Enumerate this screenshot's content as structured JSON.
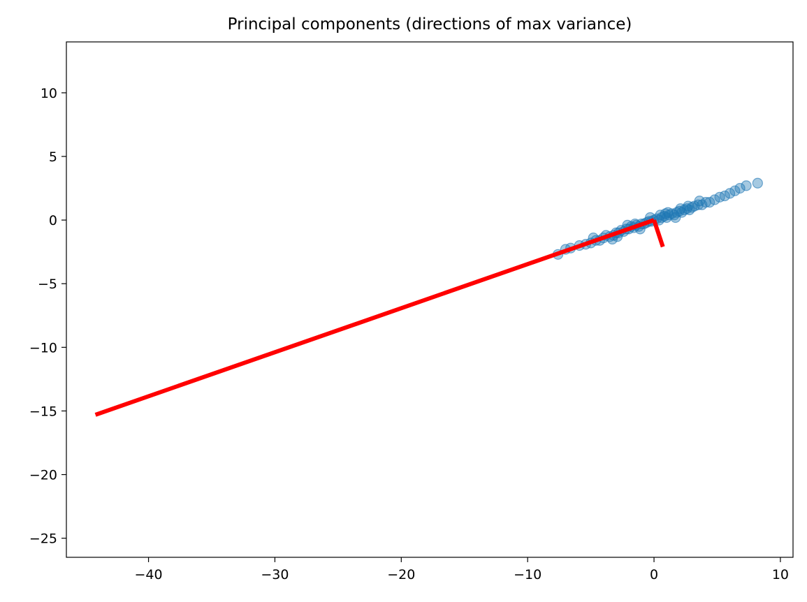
{
  "chart_data": {
    "type": "scatter",
    "title": "Principal components (directions of max variance)",
    "xlabel": "",
    "ylabel": "",
    "xlim": [
      -46.5,
      11
    ],
    "ylim": [
      -26.5,
      14
    ],
    "xticks": [
      -40,
      -30,
      -20,
      -10,
      0,
      10
    ],
    "yticks": [
      -25,
      -20,
      -15,
      -10,
      -5,
      0,
      5,
      10
    ],
    "xtick_labels": [
      "−40",
      "−30",
      "−20",
      "−10",
      "0",
      "10"
    ],
    "ytick_labels": [
      "−25",
      "−20",
      "−15",
      "−10",
      "−5",
      "0",
      "5",
      "10"
    ],
    "grid": false,
    "scatter_color": "#1f77b4",
    "scatter_alpha": 0.4,
    "points": [
      [
        -7.6,
        -2.7
      ],
      [
        -7.0,
        -2.3
      ],
      [
        -6.6,
        -2.2
      ],
      [
        -5.9,
        -2.0
      ],
      [
        -5.4,
        -1.9
      ],
      [
        -5.0,
        -1.8
      ],
      [
        -4.6,
        -1.6
      ],
      [
        -4.3,
        -1.6
      ],
      [
        -4.0,
        -1.4
      ],
      [
        -3.8,
        -1.2
      ],
      [
        -3.5,
        -1.3
      ],
      [
        -3.2,
        -1.2
      ],
      [
        -3.0,
        -1.0
      ],
      [
        -2.8,
        -1.0
      ],
      [
        -2.6,
        -0.8
      ],
      [
        -2.4,
        -0.9
      ],
      [
        -2.2,
        -0.7
      ],
      [
        -2.0,
        -0.7
      ],
      [
        -1.8,
        -0.5
      ],
      [
        -1.6,
        -0.6
      ],
      [
        -1.4,
        -0.4
      ],
      [
        -1.2,
        -0.5
      ],
      [
        -1.0,
        -0.3
      ],
      [
        -0.8,
        -0.3
      ],
      [
        -0.6,
        -0.2
      ],
      [
        -0.4,
        -0.1
      ],
      [
        -0.2,
        -0.1
      ],
      [
        0.0,
        0.0
      ],
      [
        0.2,
        0.1
      ],
      [
        0.4,
        0.0
      ],
      [
        0.6,
        0.2
      ],
      [
        0.8,
        0.3
      ],
      [
        1.0,
        0.2
      ],
      [
        1.2,
        0.4
      ],
      [
        1.4,
        0.5
      ],
      [
        1.6,
        0.4
      ],
      [
        1.8,
        0.6
      ],
      [
        2.0,
        0.7
      ],
      [
        2.2,
        0.6
      ],
      [
        2.4,
        0.8
      ],
      [
        2.6,
        0.9
      ],
      [
        2.8,
        0.8
      ],
      [
        3.0,
        1.0
      ],
      [
        3.2,
        1.1
      ],
      [
        3.5,
        1.2
      ],
      [
        3.8,
        1.2
      ],
      [
        4.1,
        1.4
      ],
      [
        4.4,
        1.4
      ],
      [
        4.8,
        1.6
      ],
      [
        5.2,
        1.8
      ],
      [
        5.6,
        1.9
      ],
      [
        6.0,
        2.1
      ],
      [
        6.4,
        2.3
      ],
      [
        6.8,
        2.5
      ],
      [
        7.3,
        2.7
      ],
      [
        8.2,
        2.9
      ],
      [
        -3.3,
        -1.5
      ],
      [
        -2.1,
        -0.4
      ],
      [
        -1.1,
        -0.7
      ],
      [
        0.9,
        0.5
      ],
      [
        1.7,
        0.2
      ],
      [
        2.7,
        1.1
      ],
      [
        -4.8,
        -1.4
      ],
      [
        -0.3,
        0.2
      ],
      [
        1.1,
        0.6
      ],
      [
        2.1,
        0.9
      ],
      [
        3.6,
        1.5
      ],
      [
        -2.9,
        -1.3
      ],
      [
        -1.5,
        -0.3
      ],
      [
        0.5,
        0.4
      ]
    ],
    "components": [
      {
        "x": [
          0,
          -44.2
        ],
        "y": [
          0,
          -15.3
        ],
        "color": "#ff0000"
      },
      {
        "x": [
          0,
          0.7
        ],
        "y": [
          0,
          -2.1
        ],
        "color": "#ff0000"
      }
    ]
  }
}
